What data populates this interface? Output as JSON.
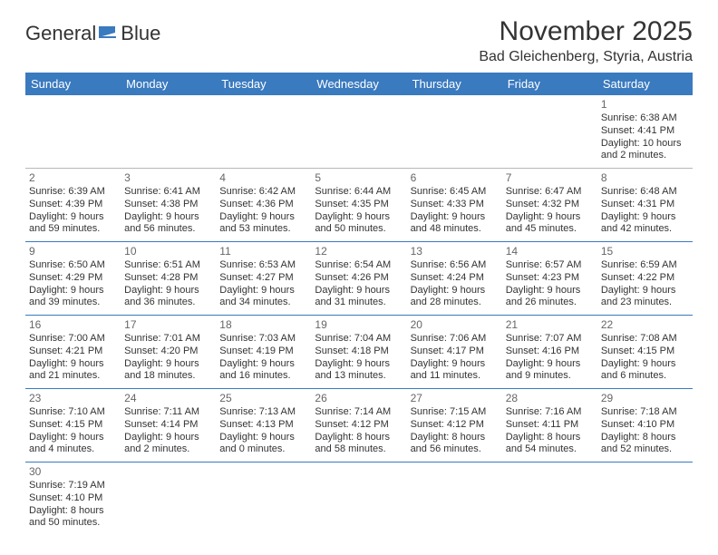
{
  "brand": {
    "name_a": "General",
    "name_b": "Blue",
    "logo_color": "#3a7abf"
  },
  "title": "November 2025",
  "location": "Bad Gleichenberg, Styria, Austria",
  "colors": {
    "accent": "#3a7abf",
    "divider": "#b8b8b8",
    "text": "#333333"
  },
  "weekdays": [
    "Sunday",
    "Monday",
    "Tuesday",
    "Wednesday",
    "Thursday",
    "Friday",
    "Saturday"
  ],
  "weeks": [
    [
      null,
      null,
      null,
      null,
      null,
      null,
      {
        "n": "1",
        "rise": "Sunrise: 6:38 AM",
        "set": "Sunset: 4:41 PM",
        "dl1": "Daylight: 10 hours",
        "dl2": "and 2 minutes."
      }
    ],
    [
      {
        "n": "2",
        "rise": "Sunrise: 6:39 AM",
        "set": "Sunset: 4:39 PM",
        "dl1": "Daylight: 9 hours",
        "dl2": "and 59 minutes."
      },
      {
        "n": "3",
        "rise": "Sunrise: 6:41 AM",
        "set": "Sunset: 4:38 PM",
        "dl1": "Daylight: 9 hours",
        "dl2": "and 56 minutes."
      },
      {
        "n": "4",
        "rise": "Sunrise: 6:42 AM",
        "set": "Sunset: 4:36 PM",
        "dl1": "Daylight: 9 hours",
        "dl2": "and 53 minutes."
      },
      {
        "n": "5",
        "rise": "Sunrise: 6:44 AM",
        "set": "Sunset: 4:35 PM",
        "dl1": "Daylight: 9 hours",
        "dl2": "and 50 minutes."
      },
      {
        "n": "6",
        "rise": "Sunrise: 6:45 AM",
        "set": "Sunset: 4:33 PM",
        "dl1": "Daylight: 9 hours",
        "dl2": "and 48 minutes."
      },
      {
        "n": "7",
        "rise": "Sunrise: 6:47 AM",
        "set": "Sunset: 4:32 PM",
        "dl1": "Daylight: 9 hours",
        "dl2": "and 45 minutes."
      },
      {
        "n": "8",
        "rise": "Sunrise: 6:48 AM",
        "set": "Sunset: 4:31 PM",
        "dl1": "Daylight: 9 hours",
        "dl2": "and 42 minutes."
      }
    ],
    [
      {
        "n": "9",
        "rise": "Sunrise: 6:50 AM",
        "set": "Sunset: 4:29 PM",
        "dl1": "Daylight: 9 hours",
        "dl2": "and 39 minutes."
      },
      {
        "n": "10",
        "rise": "Sunrise: 6:51 AM",
        "set": "Sunset: 4:28 PM",
        "dl1": "Daylight: 9 hours",
        "dl2": "and 36 minutes."
      },
      {
        "n": "11",
        "rise": "Sunrise: 6:53 AM",
        "set": "Sunset: 4:27 PM",
        "dl1": "Daylight: 9 hours",
        "dl2": "and 34 minutes."
      },
      {
        "n": "12",
        "rise": "Sunrise: 6:54 AM",
        "set": "Sunset: 4:26 PM",
        "dl1": "Daylight: 9 hours",
        "dl2": "and 31 minutes."
      },
      {
        "n": "13",
        "rise": "Sunrise: 6:56 AM",
        "set": "Sunset: 4:24 PM",
        "dl1": "Daylight: 9 hours",
        "dl2": "and 28 minutes."
      },
      {
        "n": "14",
        "rise": "Sunrise: 6:57 AM",
        "set": "Sunset: 4:23 PM",
        "dl1": "Daylight: 9 hours",
        "dl2": "and 26 minutes."
      },
      {
        "n": "15",
        "rise": "Sunrise: 6:59 AM",
        "set": "Sunset: 4:22 PM",
        "dl1": "Daylight: 9 hours",
        "dl2": "and 23 minutes."
      }
    ],
    [
      {
        "n": "16",
        "rise": "Sunrise: 7:00 AM",
        "set": "Sunset: 4:21 PM",
        "dl1": "Daylight: 9 hours",
        "dl2": "and 21 minutes."
      },
      {
        "n": "17",
        "rise": "Sunrise: 7:01 AM",
        "set": "Sunset: 4:20 PM",
        "dl1": "Daylight: 9 hours",
        "dl2": "and 18 minutes."
      },
      {
        "n": "18",
        "rise": "Sunrise: 7:03 AM",
        "set": "Sunset: 4:19 PM",
        "dl1": "Daylight: 9 hours",
        "dl2": "and 16 minutes."
      },
      {
        "n": "19",
        "rise": "Sunrise: 7:04 AM",
        "set": "Sunset: 4:18 PM",
        "dl1": "Daylight: 9 hours",
        "dl2": "and 13 minutes."
      },
      {
        "n": "20",
        "rise": "Sunrise: 7:06 AM",
        "set": "Sunset: 4:17 PM",
        "dl1": "Daylight: 9 hours",
        "dl2": "and 11 minutes."
      },
      {
        "n": "21",
        "rise": "Sunrise: 7:07 AM",
        "set": "Sunset: 4:16 PM",
        "dl1": "Daylight: 9 hours",
        "dl2": "and 9 minutes."
      },
      {
        "n": "22",
        "rise": "Sunrise: 7:08 AM",
        "set": "Sunset: 4:15 PM",
        "dl1": "Daylight: 9 hours",
        "dl2": "and 6 minutes."
      }
    ],
    [
      {
        "n": "23",
        "rise": "Sunrise: 7:10 AM",
        "set": "Sunset: 4:15 PM",
        "dl1": "Daylight: 9 hours",
        "dl2": "and 4 minutes."
      },
      {
        "n": "24",
        "rise": "Sunrise: 7:11 AM",
        "set": "Sunset: 4:14 PM",
        "dl1": "Daylight: 9 hours",
        "dl2": "and 2 minutes."
      },
      {
        "n": "25",
        "rise": "Sunrise: 7:13 AM",
        "set": "Sunset: 4:13 PM",
        "dl1": "Daylight: 9 hours",
        "dl2": "and 0 minutes."
      },
      {
        "n": "26",
        "rise": "Sunrise: 7:14 AM",
        "set": "Sunset: 4:12 PM",
        "dl1": "Daylight: 8 hours",
        "dl2": "and 58 minutes."
      },
      {
        "n": "27",
        "rise": "Sunrise: 7:15 AM",
        "set": "Sunset: 4:12 PM",
        "dl1": "Daylight: 8 hours",
        "dl2": "and 56 minutes."
      },
      {
        "n": "28",
        "rise": "Sunrise: 7:16 AM",
        "set": "Sunset: 4:11 PM",
        "dl1": "Daylight: 8 hours",
        "dl2": "and 54 minutes."
      },
      {
        "n": "29",
        "rise": "Sunrise: 7:18 AM",
        "set": "Sunset: 4:10 PM",
        "dl1": "Daylight: 8 hours",
        "dl2": "and 52 minutes."
      }
    ],
    [
      {
        "n": "30",
        "rise": "Sunrise: 7:19 AM",
        "set": "Sunset: 4:10 PM",
        "dl1": "Daylight: 8 hours",
        "dl2": "and 50 minutes."
      },
      null,
      null,
      null,
      null,
      null,
      null
    ]
  ]
}
